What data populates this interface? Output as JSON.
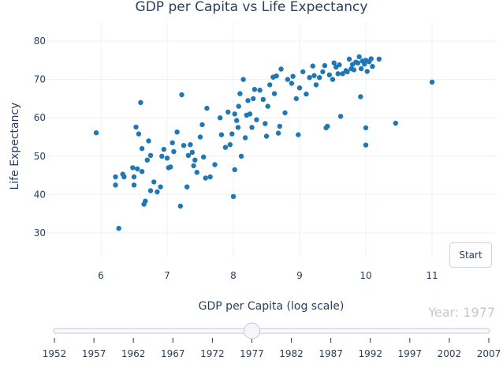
{
  "chart_data": {
    "type": "scatter",
    "title": "GDP per Capita vs Life Expectancy",
    "xlabel": "GDP per Capita (log scale)",
    "ylabel": "Life Expectancy",
    "xlim": [
      5.5,
      11.5
    ],
    "ylim": [
      20,
      85
    ],
    "xticks": [
      6,
      7,
      8,
      9,
      10,
      11
    ],
    "yticks": [
      30,
      40,
      50,
      60,
      70,
      80
    ],
    "grid": true,
    "marker_color": "#1f77b4",
    "points": [
      [
        5.93,
        56.1
      ],
      [
        6.22,
        44.6
      ],
      [
        6.22,
        42.5
      ],
      [
        6.27,
        31.2
      ],
      [
        6.33,
        45.3
      ],
      [
        6.35,
        44.6
      ],
      [
        6.48,
        47.0
      ],
      [
        6.5,
        44.6
      ],
      [
        6.5,
        42.5
      ],
      [
        6.53,
        57.6
      ],
      [
        6.55,
        46.7
      ],
      [
        6.57,
        55.8
      ],
      [
        6.6,
        64.0
      ],
      [
        6.62,
        46.0
      ],
      [
        6.62,
        52.0
      ],
      [
        6.65,
        37.5
      ],
      [
        6.67,
        38.3
      ],
      [
        6.7,
        49.0
      ],
      [
        6.72,
        54.0
      ],
      [
        6.75,
        50.2
      ],
      [
        6.75,
        41.0
      ],
      [
        6.8,
        43.3
      ],
      [
        6.85,
        40.7
      ],
      [
        6.9,
        42.0
      ],
      [
        6.92,
        50.0
      ],
      [
        6.95,
        51.8
      ],
      [
        7.0,
        49.5
      ],
      [
        7.02,
        47.0
      ],
      [
        7.05,
        47.2
      ],
      [
        7.08,
        53.5
      ],
      [
        7.1,
        51.2
      ],
      [
        7.15,
        56.3
      ],
      [
        7.2,
        37.0
      ],
      [
        7.22,
        66.0
      ],
      [
        7.25,
        52.8
      ],
      [
        7.3,
        42.0
      ],
      [
        7.32,
        50.2
      ],
      [
        7.35,
        53.0
      ],
      [
        7.38,
        51.0
      ],
      [
        7.4,
        47.5
      ],
      [
        7.42,
        49.0
      ],
      [
        7.45,
        45.8
      ],
      [
        7.5,
        55.0
      ],
      [
        7.53,
        58.2
      ],
      [
        7.55,
        49.8
      ],
      [
        7.58,
        44.3
      ],
      [
        7.6,
        62.5
      ],
      [
        7.65,
        44.6
      ],
      [
        7.72,
        47.8
      ],
      [
        7.8,
        60.0
      ],
      [
        7.82,
        55.6
      ],
      [
        7.88,
        52.3
      ],
      [
        7.92,
        61.5
      ],
      [
        7.95,
        53.0
      ],
      [
        7.98,
        55.8
      ],
      [
        8.0,
        39.5
      ],
      [
        8.02,
        46.5
      ],
      [
        8.02,
        61.0
      ],
      [
        8.05,
        59.3
      ],
      [
        8.07,
        57.5
      ],
      [
        8.08,
        63.0
      ],
      [
        8.1,
        66.3
      ],
      [
        8.12,
        50.0
      ],
      [
        8.15,
        70.0
      ],
      [
        8.18,
        54.8
      ],
      [
        8.2,
        60.7
      ],
      [
        8.22,
        64.5
      ],
      [
        8.25,
        61.0
      ],
      [
        8.28,
        57.5
      ],
      [
        8.3,
        65.0
      ],
      [
        8.32,
        67.4
      ],
      [
        8.35,
        59.5
      ],
      [
        8.4,
        67.2
      ],
      [
        8.45,
        64.8
      ],
      [
        8.48,
        58.5
      ],
      [
        8.5,
        55.2
      ],
      [
        8.52,
        63.0
      ],
      [
        8.55,
        68.6
      ],
      [
        8.6,
        70.6
      ],
      [
        8.62,
        66.3
      ],
      [
        8.65,
        70.9
      ],
      [
        8.68,
        56.0
      ],
      [
        8.7,
        57.8
      ],
      [
        8.72,
        72.7
      ],
      [
        8.78,
        61.3
      ],
      [
        8.82,
        70.0
      ],
      [
        8.88,
        69.0
      ],
      [
        8.9,
        70.8
      ],
      [
        8.95,
        65.0
      ],
      [
        8.98,
        55.6
      ],
      [
        9.0,
        67.8
      ],
      [
        9.05,
        72.0
      ],
      [
        9.1,
        66.2
      ],
      [
        9.15,
        70.5
      ],
      [
        9.2,
        73.5
      ],
      [
        9.22,
        71.0
      ],
      [
        9.25,
        68.6
      ],
      [
        9.3,
        70.5
      ],
      [
        9.35,
        72.0
      ],
      [
        9.38,
        73.6
      ],
      [
        9.4,
        57.4
      ],
      [
        9.42,
        57.8
      ],
      [
        9.45,
        71.2
      ],
      [
        9.5,
        70.0
      ],
      [
        9.52,
        74.3
      ],
      [
        9.55,
        73.2
      ],
      [
        9.58,
        71.5
      ],
      [
        9.6,
        73.8
      ],
      [
        9.62,
        60.4
      ],
      [
        9.65,
        71.5
      ],
      [
        9.7,
        72.3
      ],
      [
        9.72,
        72.0
      ],
      [
        9.75,
        75.3
      ],
      [
        9.78,
        72.8
      ],
      [
        9.8,
        73.9
      ],
      [
        9.82,
        72.5
      ],
      [
        9.85,
        74.5
      ],
      [
        9.88,
        74.3
      ],
      [
        9.9,
        75.9
      ],
      [
        9.92,
        65.5
      ],
      [
        9.93,
        72.8
      ],
      [
        9.95,
        74.8
      ],
      [
        9.98,
        74.0
      ],
      [
        10.0,
        75.0
      ],
      [
        10.0,
        57.4
      ],
      [
        10.0,
        52.9
      ],
      [
        10.02,
        72.1
      ],
      [
        10.05,
        74.6
      ],
      [
        10.08,
        75.4
      ],
      [
        10.1,
        73.4
      ],
      [
        10.2,
        75.3
      ],
      [
        10.45,
        58.6
      ],
      [
        11.0,
        69.3
      ]
    ]
  },
  "controls": {
    "start_label": "Start",
    "year_label": "Year: 1977",
    "slider_years": [
      "1952",
      "1957",
      "1962",
      "1967",
      "1972",
      "1977",
      "1982",
      "1987",
      "1992",
      "1997",
      "2002",
      "2007"
    ],
    "slider_value": "1977"
  }
}
